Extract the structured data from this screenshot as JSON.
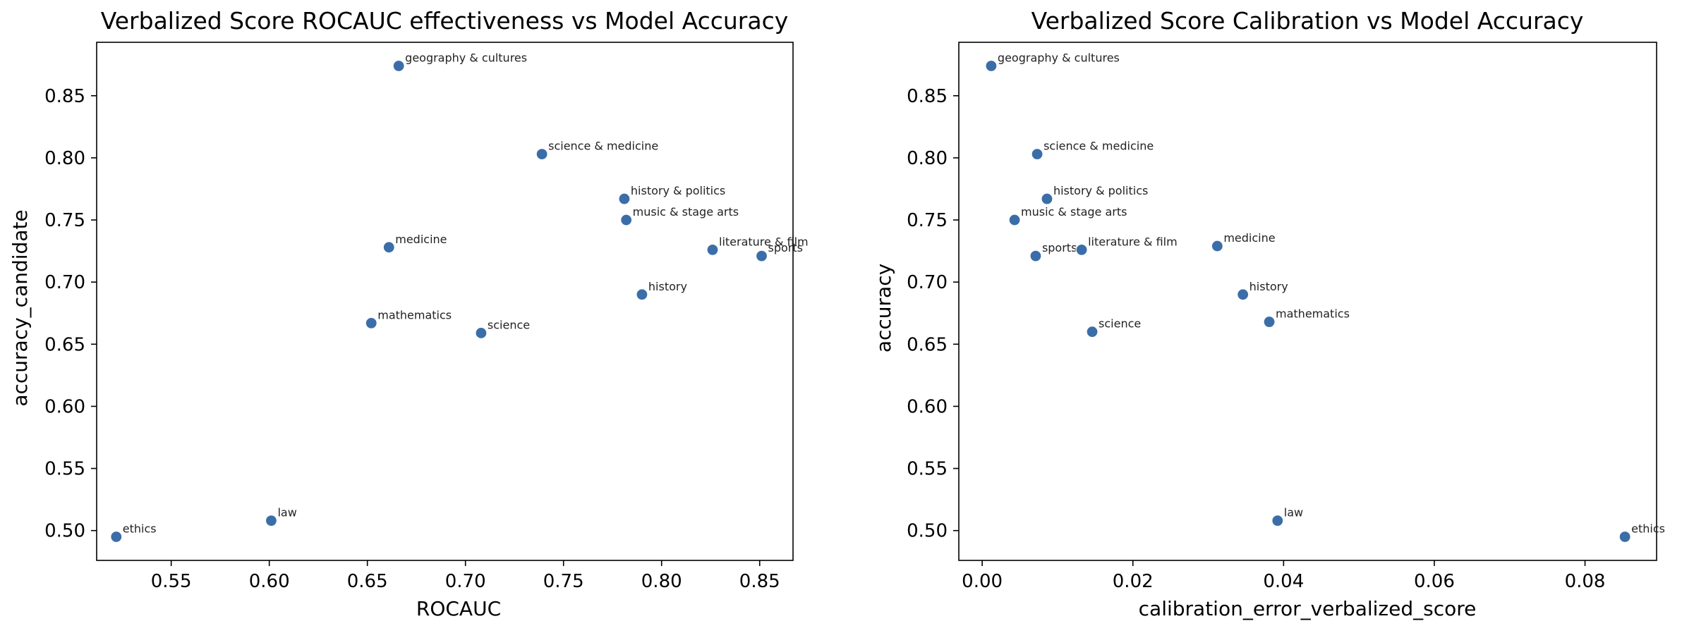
{
  "chart_data": [
    {
      "type": "scatter",
      "title": "Verbalized Score ROCAUC effectiveness vs Model Accuracy",
      "xlabel": "ROCAUC",
      "ylabel": "accuracy_candidate",
      "xlim": [
        0.512,
        0.867
      ],
      "ylim": [
        0.476,
        0.893
      ],
      "xticks": [
        0.55,
        0.6,
        0.65,
        0.7,
        0.75,
        0.8,
        0.85
      ],
      "xtick_labels": [
        "0.55",
        "0.60",
        "0.65",
        "0.70",
        "0.75",
        "0.80",
        "0.85"
      ],
      "yticks": [
        0.5,
        0.55,
        0.6,
        0.65,
        0.7,
        0.75,
        0.8,
        0.85
      ],
      "ytick_labels": [
        "0.50",
        "0.55",
        "0.60",
        "0.65",
        "0.70",
        "0.75",
        "0.80",
        "0.85"
      ],
      "grid": false,
      "marker_color": "#3b6ea8",
      "points": [
        {
          "label": "geography & cultures",
          "x": 0.666,
          "y": 0.874
        },
        {
          "label": "science & medicine",
          "x": 0.739,
          "y": 0.803
        },
        {
          "label": "history & politics",
          "x": 0.781,
          "y": 0.767
        },
        {
          "label": "music & stage arts",
          "x": 0.782,
          "y": 0.75
        },
        {
          "label": "medicine",
          "x": 0.661,
          "y": 0.728
        },
        {
          "label": "literature & film",
          "x": 0.826,
          "y": 0.726
        },
        {
          "label": "sports",
          "x": 0.851,
          "y": 0.721
        },
        {
          "label": "history",
          "x": 0.79,
          "y": 0.69
        },
        {
          "label": "mathematics",
          "x": 0.652,
          "y": 0.667
        },
        {
          "label": "science",
          "x": 0.708,
          "y": 0.659
        },
        {
          "label": "law",
          "x": 0.601,
          "y": 0.508
        },
        {
          "label": "ethics",
          "x": 0.522,
          "y": 0.495
        }
      ]
    },
    {
      "type": "scatter",
      "title": "Verbalized Score Calibration vs Model Accuracy",
      "xlabel": "calibration_error_verbalized_score",
      "ylabel": "accuracy",
      "xlim": [
        -0.0031,
        0.0895
      ],
      "ylim": [
        0.476,
        0.893
      ],
      "xticks": [
        0.0,
        0.02,
        0.04,
        0.06,
        0.08
      ],
      "xtick_labels": [
        "0.00",
        "0.02",
        "0.04",
        "0.06",
        "0.08"
      ],
      "yticks": [
        0.5,
        0.55,
        0.6,
        0.65,
        0.7,
        0.75,
        0.8,
        0.85
      ],
      "ytick_labels": [
        "0.50",
        "0.55",
        "0.60",
        "0.65",
        "0.70",
        "0.75",
        "0.80",
        "0.85"
      ],
      "grid": false,
      "marker_color": "#3b6ea8",
      "points": [
        {
          "label": "geography & cultures",
          "x": 0.0012,
          "y": 0.874
        },
        {
          "label": "science & medicine",
          "x": 0.0073,
          "y": 0.803
        },
        {
          "label": "history & politics",
          "x": 0.0086,
          "y": 0.767
        },
        {
          "label": "music & stage arts",
          "x": 0.0043,
          "y": 0.75
        },
        {
          "label": "sports",
          "x": 0.0071,
          "y": 0.721
        },
        {
          "label": "literature & film",
          "x": 0.0132,
          "y": 0.726
        },
        {
          "label": "medicine",
          "x": 0.0312,
          "y": 0.729
        },
        {
          "label": "history",
          "x": 0.0346,
          "y": 0.69
        },
        {
          "label": "mathematics",
          "x": 0.0381,
          "y": 0.668
        },
        {
          "label": "science",
          "x": 0.0146,
          "y": 0.66
        },
        {
          "label": "law",
          "x": 0.0392,
          "y": 0.508
        },
        {
          "label": "ethics",
          "x": 0.0853,
          "y": 0.495
        }
      ]
    }
  ]
}
